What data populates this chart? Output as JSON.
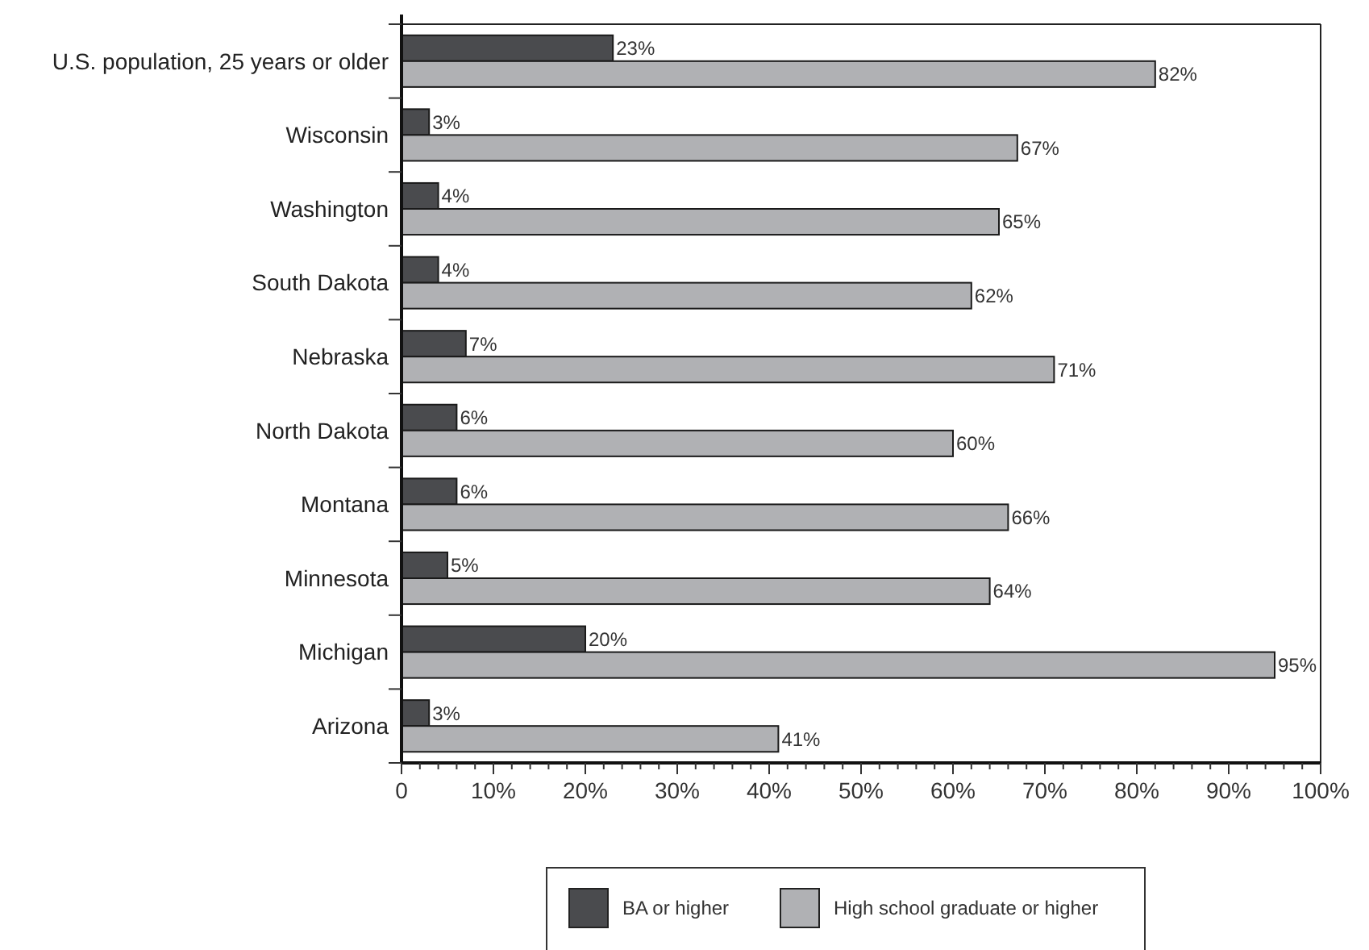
{
  "chart_data": {
    "type": "bar",
    "orientation": "horizontal",
    "categories": [
      "U.S. population, 25 years or older",
      "Wisconsin",
      "Washington",
      "South Dakota",
      "Nebraska",
      "North Dakota",
      "Montana",
      "Minnesota",
      "Michigan",
      "Arizona"
    ],
    "series": [
      {
        "name": "BA or higher",
        "color": "#4a4b4e",
        "values": [
          23,
          3,
          4,
          4,
          7,
          6,
          6,
          5,
          20,
          3
        ],
        "value_labels": [
          "23%",
          "3%",
          "4%",
          "4%",
          "7%",
          "6%",
          "6%",
          "5%",
          "20%",
          "3%"
        ]
      },
      {
        "name": "High school graduate or higher",
        "color": "#b0b1b4",
        "values": [
          82,
          67,
          65,
          62,
          71,
          60,
          66,
          64,
          95,
          41
        ],
        "value_labels": [
          "82%",
          "67%",
          "65%",
          "62%",
          "71%",
          "60%",
          "66%",
          "64%",
          "95%",
          "41%"
        ]
      }
    ],
    "xlim": [
      0,
      100
    ],
    "xticks": [
      {
        "value": 0,
        "label": "0"
      },
      {
        "value": 2,
        "label": null
      },
      {
        "value": 4,
        "label": null
      },
      {
        "value": 6,
        "label": null
      },
      {
        "value": 8,
        "label": null
      },
      {
        "value": 10,
        "label": "10%"
      },
      {
        "value": 12,
        "label": null
      },
      {
        "value": 14,
        "label": null
      },
      {
        "value": 16,
        "label": null
      },
      {
        "value": 18,
        "label": null
      },
      {
        "value": 20,
        "label": "20%"
      },
      {
        "value": 22,
        "label": null
      },
      {
        "value": 24,
        "label": null
      },
      {
        "value": 26,
        "label": null
      },
      {
        "value": 28,
        "label": null
      },
      {
        "value": 30,
        "label": "30%"
      },
      {
        "value": 32,
        "label": null
      },
      {
        "value": 34,
        "label": null
      },
      {
        "value": 36,
        "label": null
      },
      {
        "value": 38,
        "label": null
      },
      {
        "value": 40,
        "label": "40%"
      },
      {
        "value": 42,
        "label": null
      },
      {
        "value": 44,
        "label": null
      },
      {
        "value": 46,
        "label": null
      },
      {
        "value": 48,
        "label": null
      },
      {
        "value": 50,
        "label": "50%"
      },
      {
        "value": 52,
        "label": null
      },
      {
        "value": 54,
        "label": null
      },
      {
        "value": 56,
        "label": null
      },
      {
        "value": 58,
        "label": null
      },
      {
        "value": 60,
        "label": "60%"
      },
      {
        "value": 62,
        "label": null
      },
      {
        "value": 64,
        "label": null
      },
      {
        "value": 66,
        "label": null
      },
      {
        "value": 68,
        "label": null
      },
      {
        "value": 70,
        "label": "70%"
      },
      {
        "value": 72,
        "label": null
      },
      {
        "value": 74,
        "label": null
      },
      {
        "value": 76,
        "label": null
      },
      {
        "value": 78,
        "label": null
      },
      {
        "value": 80,
        "label": "80%"
      },
      {
        "value": 82,
        "label": null
      },
      {
        "value": 84,
        "label": null
      },
      {
        "value": 86,
        "label": null
      },
      {
        "value": 88,
        "label": null
      },
      {
        "value": 90,
        "label": "90%"
      },
      {
        "value": 92,
        "label": null
      },
      {
        "value": 94,
        "label": null
      },
      {
        "value": 96,
        "label": null
      },
      {
        "value": 98,
        "label": null
      },
      {
        "value": 100,
        "label": "100%"
      }
    ],
    "legend": "bottom"
  }
}
